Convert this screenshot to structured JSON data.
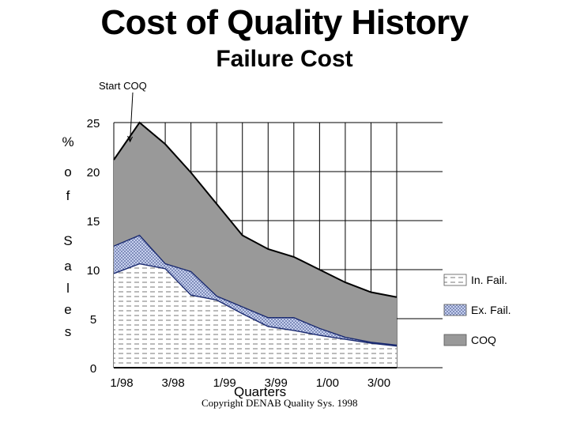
{
  "chart_data": {
    "type": "area",
    "title": "Cost of Quality History",
    "subtitle": "Failure Cost",
    "xlabel": "Quarters",
    "ylabel_letters": [
      "%",
      "o",
      "f",
      "S",
      "a",
      "l",
      "e",
      "s"
    ],
    "x": [
      "1/98",
      "2/98",
      "3/98",
      "4/98",
      "1/99",
      "2/99",
      "3/99",
      "4/99",
      "1/00",
      "2/00",
      "3/00",
      "4/00"
    ],
    "x_tick_labels": [
      "1/98",
      "3/98",
      "1/99",
      "3/99",
      "1/00",
      "3/00"
    ],
    "y_tick_labels": [
      "0",
      "5",
      "10",
      "15",
      "20",
      "25"
    ],
    "ylim": [
      0,
      25
    ],
    "grid": true,
    "legend_position": "right",
    "series": [
      {
        "name": "In. Fail.",
        "fill": "#ffffff",
        "pattern": "dashes",
        "values": [
          9.6,
          10.6,
          10.1,
          7.4,
          6.9,
          5.5,
          4.2,
          3.8,
          3.3,
          2.9,
          2.5,
          2.2
        ]
      },
      {
        "name": "Ex. Fail.",
        "fill": "#b8c4e4",
        "pattern": "crosshatch",
        "values": [
          12.4,
          13.5,
          10.6,
          9.8,
          7.3,
          6.2,
          5.1,
          5.1,
          4.0,
          3.1,
          2.6,
          2.3
        ]
      },
      {
        "name": "COQ",
        "fill": "#999999",
        "pattern": "solid",
        "values": [
          21.2,
          25.0,
          22.8,
          19.9,
          16.7,
          13.5,
          12.1,
          11.3,
          10.0,
          8.7,
          7.7,
          7.2
        ]
      }
    ],
    "annotation": {
      "text": "Start COQ",
      "points_to": "2/98"
    }
  },
  "copyright": "Copyright DENAB Quality Sys. 1998"
}
